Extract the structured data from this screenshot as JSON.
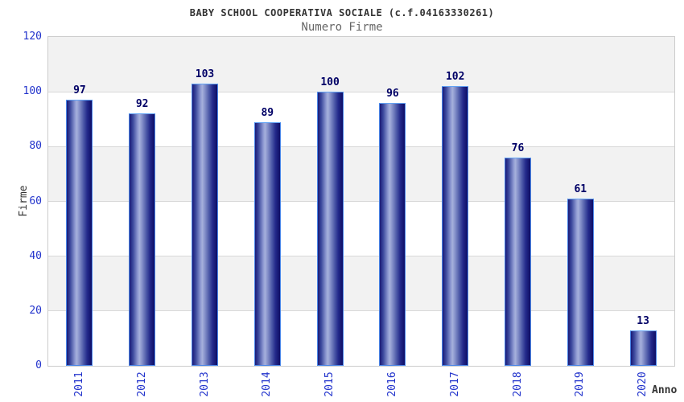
{
  "header": {
    "title": "BABY SCHOOL COOPERATIVA SOCIALE (c.f.04163330261)",
    "subtitle": "Numero Firme"
  },
  "chart_data": {
    "type": "bar",
    "title": "BABY SCHOOL COOPERATIVA SOCIALE (c.f.04163330261)",
    "subtitle": "Numero Firme",
    "categories": [
      "2011",
      "2012",
      "2013",
      "2014",
      "2015",
      "2016",
      "2017",
      "2018",
      "2019",
      "2020"
    ],
    "values": [
      97,
      92,
      103,
      89,
      100,
      96,
      102,
      76,
      61,
      13
    ],
    "xlabel": "Anno",
    "ylabel": "Firme",
    "ylim": [
      0,
      120
    ],
    "yticks": [
      0,
      20,
      40,
      60,
      80,
      100,
      120
    ],
    "grid": "horizontal alternating bands every 20 units, gray on 100-120 / 60-80 / 20-40",
    "legend": "none",
    "bar_value_labels": [
      "97",
      "92",
      "103",
      "89",
      "100",
      "96",
      "102",
      "76",
      "61",
      "13"
    ]
  },
  "colors": {
    "background": "#ffffff",
    "title": "#333333",
    "subtitle": "#666666",
    "tick_label": "#2233cc",
    "value_label": "#000066",
    "band": "#f2f2f2",
    "gridline": "#d8d8d8",
    "plot_border": "#cccccc",
    "bar_dark": "#14146e",
    "bar_light": "#a6b0dc",
    "bar_border": "#4a86e8"
  }
}
